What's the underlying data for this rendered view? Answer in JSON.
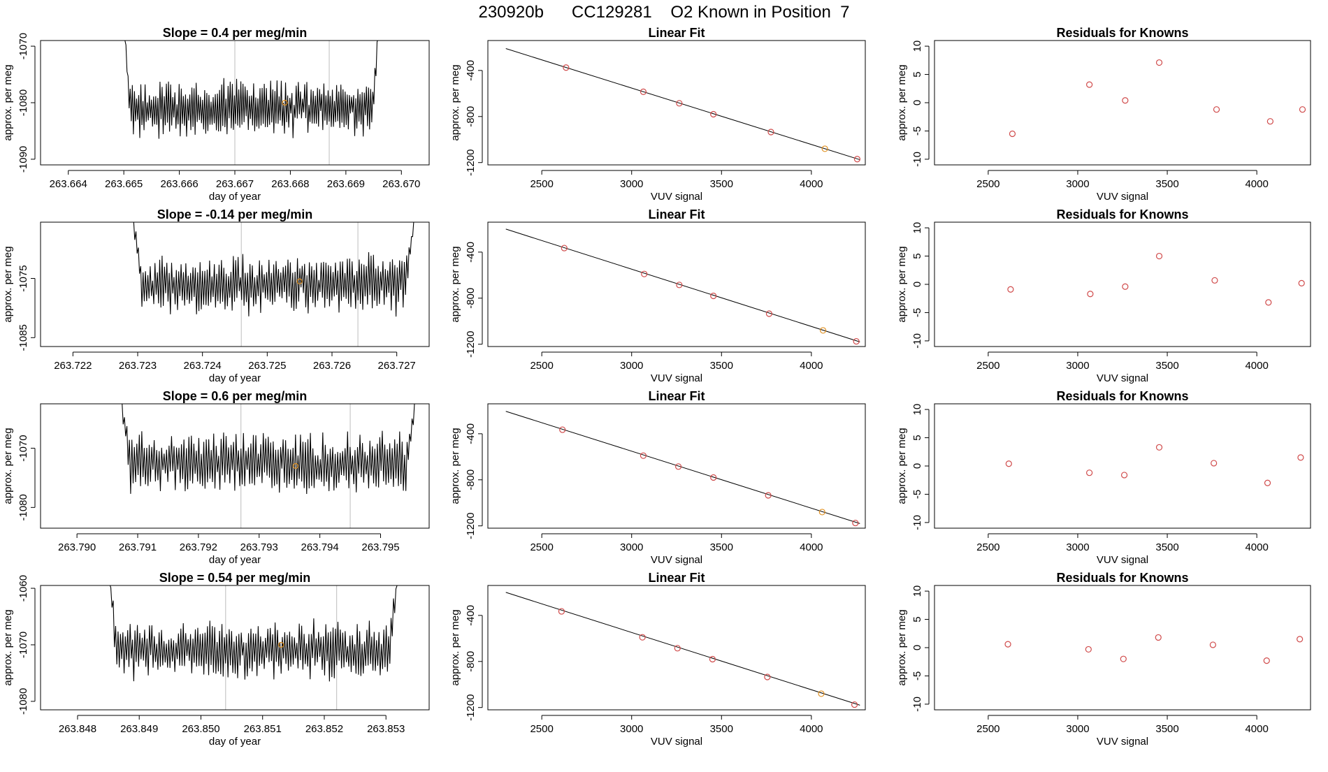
{
  "page": {
    "title": "230920b      CC129281    O2 Known in Position  7"
  },
  "colors": {
    "line": "#000000",
    "grid_vline": "#c8c8c8",
    "known_point": "#d04a4a",
    "highlight_point": "#e09020",
    "frame": "#000000"
  },
  "chart_data": [
    {
      "type": "line",
      "row": 1,
      "col": 1,
      "title": "Slope =  0.4  per meg/min",
      "xlabel": "day of year",
      "ylabel": "approx. per meg",
      "xlim": [
        263.6635,
        263.6705
      ],
      "ylim": [
        -1091,
        -1069
      ],
      "xticks": [
        263.664,
        263.665,
        263.666,
        263.667,
        263.668,
        263.669,
        263.67
      ],
      "xtick_labels": [
        "263.664",
        "263.665",
        "263.666",
        "263.667",
        "263.668",
        "263.669",
        "263.670"
      ],
      "yticks": [
        -1090,
        -1080,
        -1070
      ],
      "ytick_labels": [
        "-1090",
        "-1080",
        "-1070"
      ],
      "trace": {
        "x_start": 263.665,
        "x_end": 263.6696,
        "baseline": -1081,
        "amplitude": 4.5,
        "start_level": -1066,
        "end_level": -1066,
        "edge_fraction": 0.025
      },
      "vlines": [
        263.667,
        263.6687
      ],
      "marker": {
        "x": 263.6679,
        "y": -1080
      }
    },
    {
      "type": "scatter",
      "row": 1,
      "col": 2,
      "title": "Linear Fit",
      "xlabel": "VUV signal",
      "ylabel": "approx. per meg",
      "xlim": [
        2200,
        4300
      ],
      "ylim": [
        -1220,
        -140
      ],
      "xticks": [
        2500,
        3000,
        3500,
        4000
      ],
      "xtick_labels": [
        "2500",
        "3000",
        "3500",
        "4000"
      ],
      "yticks": [
        -1200,
        -800,
        -400
      ],
      "ytick_labels": [
        "-1200",
        "-800",
        "-400"
      ],
      "fit_line": {
        "x": [
          2300,
          4270
        ],
        "y": [
          -210,
          -1175
        ]
      },
      "points": [
        {
          "x": 2635,
          "y": -375
        },
        {
          "x": 3065,
          "y": -585
        },
        {
          "x": 3265,
          "y": -685
        },
        {
          "x": 3455,
          "y": -780
        },
        {
          "x": 3775,
          "y": -935
        },
        {
          "x": 4075,
          "y": -1080
        },
        {
          "x": 4255,
          "y": -1170
        }
      ],
      "highlight_index": 5
    },
    {
      "type": "scatter",
      "row": 1,
      "col": 3,
      "title": "Residuals for Knowns",
      "xlabel": "VUV signal",
      "ylabel": "approx. per meg",
      "xlim": [
        2200,
        4300
      ],
      "ylim": [
        -11,
        11
      ],
      "xticks": [
        2500,
        3000,
        3500,
        4000
      ],
      "xtick_labels": [
        "2500",
        "3000",
        "3500",
        "4000"
      ],
      "yticks": [
        -10,
        -5,
        0,
        5,
        10
      ],
      "ytick_labels": [
        "-10",
        "-5",
        "0",
        "5",
        "10"
      ],
      "points": [
        {
          "x": 2635,
          "y": -5.5
        },
        {
          "x": 3065,
          "y": 3.2
        },
        {
          "x": 3265,
          "y": 0.4
        },
        {
          "x": 3455,
          "y": 7.1
        },
        {
          "x": 3775,
          "y": -1.2
        },
        {
          "x": 4075,
          "y": -3.3
        },
        {
          "x": 4255,
          "y": -1.2
        }
      ]
    },
    {
      "type": "line",
      "row": 2,
      "col": 1,
      "title": "Slope =  -0.14  per meg/min",
      "xlabel": "day of year",
      "ylabel": "approx. per meg",
      "xlim": [
        263.7215,
        263.7275
      ],
      "ylim": [
        -1086.5,
        -1065.5
      ],
      "xticks": [
        263.722,
        263.723,
        263.724,
        263.725,
        263.726,
        263.727
      ],
      "xtick_labels": [
        "263.722",
        "263.723",
        "263.724",
        "263.725",
        "263.726",
        "263.727"
      ],
      "yticks": [
        -1085,
        -1075
      ],
      "ytick_labels": [
        "-1085",
        "-1075"
      ],
      "trace": {
        "x_start": 263.7229,
        "x_end": 263.7273,
        "baseline": -1076,
        "amplitude": 4.5,
        "start_level": -1063,
        "end_level": -1063,
        "edge_fraction": 0.04
      },
      "vlines": [
        263.7246,
        263.7264
      ],
      "marker": {
        "x": 263.7255,
        "y": -1075.5
      }
    },
    {
      "type": "scatter",
      "row": 2,
      "col": 2,
      "title": "Linear Fit",
      "xlabel": "VUV signal",
      "ylabel": "approx. per meg",
      "xlim": [
        2200,
        4300
      ],
      "ylim": [
        -1220,
        -140
      ],
      "xticks": [
        2500,
        3000,
        3500,
        4000
      ],
      "xtick_labels": [
        "2500",
        "3000",
        "3500",
        "4000"
      ],
      "yticks": [
        -1200,
        -800,
        -400
      ],
      "ytick_labels": [
        "-1200",
        "-800",
        "-400"
      ],
      "fit_line": {
        "x": [
          2300,
          4270
        ],
        "y": [
          -200,
          -1180
        ]
      },
      "points": [
        {
          "x": 2625,
          "y": -365
        },
        {
          "x": 3070,
          "y": -590
        },
        {
          "x": 3265,
          "y": -685
        },
        {
          "x": 3455,
          "y": -780
        },
        {
          "x": 3765,
          "y": -935
        },
        {
          "x": 4065,
          "y": -1080
        },
        {
          "x": 4250,
          "y": -1175
        }
      ],
      "highlight_index": 5
    },
    {
      "type": "scatter",
      "row": 2,
      "col": 3,
      "title": "Residuals for Knowns",
      "xlabel": "VUV signal",
      "ylabel": "approx. per meg",
      "xlim": [
        2200,
        4300
      ],
      "ylim": [
        -11,
        11
      ],
      "xticks": [
        2500,
        3000,
        3500,
        4000
      ],
      "xtick_labels": [
        "2500",
        "3000",
        "3500",
        "4000"
      ],
      "yticks": [
        -10,
        -5,
        0,
        5,
        10
      ],
      "ytick_labels": [
        "-10",
        "-5",
        "0",
        "5",
        "10"
      ],
      "points": [
        {
          "x": 2625,
          "y": -0.9
        },
        {
          "x": 3070,
          "y": -1.7
        },
        {
          "x": 3265,
          "y": -0.4
        },
        {
          "x": 3455,
          "y": 5.0
        },
        {
          "x": 3765,
          "y": 0.7
        },
        {
          "x": 4065,
          "y": -3.2
        },
        {
          "x": 4250,
          "y": 0.2
        }
      ]
    },
    {
      "type": "line",
      "row": 3,
      "col": 1,
      "title": "Slope =  0.6  per meg/min",
      "xlabel": "day of year",
      "ylabel": "approx. per meg",
      "xlim": [
        263.7894,
        263.7958
      ],
      "ylim": [
        -1083.5,
        -1062.5
      ],
      "xticks": [
        263.79,
        263.791,
        263.792,
        263.793,
        263.794,
        263.795
      ],
      "xtick_labels": [
        "263.790",
        "263.791",
        "263.792",
        "263.793",
        "263.794",
        "263.795"
      ],
      "yticks": [
        -1080,
        -1070
      ],
      "ytick_labels": [
        "-1080",
        "-1070"
      ],
      "trace": {
        "x_start": 263.7907,
        "x_end": 263.7956,
        "baseline": -1072.5,
        "amplitude": 4.5,
        "start_level": -1060,
        "end_level": -1060,
        "edge_fraction": 0.035
      },
      "vlines": [
        263.7927,
        263.7945
      ],
      "marker": {
        "x": 263.7936,
        "y": -1073
      }
    },
    {
      "type": "scatter",
      "row": 3,
      "col": 2,
      "title": "Linear Fit",
      "xlabel": "VUV signal",
      "ylabel": "approx. per meg",
      "xlim": [
        2200,
        4300
      ],
      "ylim": [
        -1220,
        -140
      ],
      "xticks": [
        2500,
        3000,
        3500,
        4000
      ],
      "xtick_labels": [
        "2500",
        "3000",
        "3500",
        "4000"
      ],
      "yticks": [
        -1200,
        -800,
        -400
      ],
      "ytick_labels": [
        "-1200",
        "-800",
        "-400"
      ],
      "fit_line": {
        "x": [
          2300,
          4270
        ],
        "y": [
          -205,
          -1180
        ]
      },
      "points": [
        {
          "x": 2615,
          "y": -365
        },
        {
          "x": 3065,
          "y": -590
        },
        {
          "x": 3260,
          "y": -685
        },
        {
          "x": 3455,
          "y": -780
        },
        {
          "x": 3760,
          "y": -935
        },
        {
          "x": 4060,
          "y": -1080
        },
        {
          "x": 4245,
          "y": -1175
        }
      ],
      "highlight_index": 5
    },
    {
      "type": "scatter",
      "row": 3,
      "col": 3,
      "title": "Residuals for Knowns",
      "xlabel": "VUV signal",
      "ylabel": "approx. per meg",
      "xlim": [
        2200,
        4300
      ],
      "ylim": [
        -11,
        11
      ],
      "xticks": [
        2500,
        3000,
        3500,
        4000
      ],
      "xtick_labels": [
        "2500",
        "3000",
        "3500",
        "4000"
      ],
      "yticks": [
        -10,
        -5,
        0,
        5,
        10
      ],
      "ytick_labels": [
        "-10",
        "-5",
        "0",
        "5",
        "10"
      ],
      "points": [
        {
          "x": 2615,
          "y": 0.4
        },
        {
          "x": 3065,
          "y": -1.2
        },
        {
          "x": 3260,
          "y": -1.6
        },
        {
          "x": 3455,
          "y": 3.3
        },
        {
          "x": 3760,
          "y": 0.5
        },
        {
          "x": 4060,
          "y": -3.0
        },
        {
          "x": 4245,
          "y": 1.5
        }
      ]
    },
    {
      "type": "line",
      "row": 4,
      "col": 1,
      "title": "Slope =  0.54  per meg/min",
      "xlabel": "day of year",
      "ylabel": "approx. per meg",
      "xlim": [
        263.8474,
        263.8537
      ],
      "ylim": [
        -1081.5,
        -1059.5
      ],
      "xticks": [
        263.848,
        263.849,
        263.85,
        263.851,
        263.852,
        263.853
      ],
      "xtick_labels": [
        "263.848",
        "263.849",
        "263.850",
        "263.851",
        "263.852",
        "263.853"
      ],
      "yticks": [
        -1080,
        -1070,
        -1060
      ],
      "ytick_labels": [
        "-1080",
        "-1070",
        "-1060"
      ],
      "trace": {
        "x_start": 263.8485,
        "x_end": 263.8532,
        "baseline": -1071,
        "amplitude": 4.5,
        "start_level": -1057,
        "end_level": -1057,
        "edge_fraction": 0.03
      },
      "vlines": [
        263.8504,
        263.8522
      ],
      "marker": {
        "x": 263.8513,
        "y": -1070
      }
    },
    {
      "type": "scatter",
      "row": 4,
      "col": 2,
      "title": "Linear Fit",
      "xlabel": "VUV signal",
      "ylabel": "approx. per meg",
      "xlim": [
        2200,
        4300
      ],
      "ylim": [
        -1220,
        -140
      ],
      "xticks": [
        2500,
        3000,
        3500,
        4000
      ],
      "xtick_labels": [
        "2500",
        "3000",
        "3500",
        "4000"
      ],
      "yticks": [
        -1200,
        -800,
        -400
      ],
      "ytick_labels": [
        "-1200",
        "-800",
        "-400"
      ],
      "fit_line": {
        "x": [
          2300,
          4270
        ],
        "y": [
          -200,
          -1180
        ]
      },
      "points": [
        {
          "x": 2610,
          "y": -365
        },
        {
          "x": 3060,
          "y": -590
        },
        {
          "x": 3255,
          "y": -685
        },
        {
          "x": 3450,
          "y": -780
        },
        {
          "x": 3755,
          "y": -935
        },
        {
          "x": 4055,
          "y": -1080
        },
        {
          "x": 4240,
          "y": -1175
        }
      ],
      "highlight_index": 5
    },
    {
      "type": "scatter",
      "row": 4,
      "col": 3,
      "title": "Residuals for Knowns",
      "xlabel": "VUV signal",
      "ylabel": "approx. per meg",
      "xlim": [
        2200,
        4300
      ],
      "ylim": [
        -11,
        11
      ],
      "xticks": [
        2500,
        3000,
        3500,
        4000
      ],
      "xtick_labels": [
        "2500",
        "3000",
        "3500",
        "4000"
      ],
      "yticks": [
        -10,
        -5,
        0,
        5,
        10
      ],
      "ytick_labels": [
        "-10",
        "-5",
        "0",
        "5",
        "10"
      ],
      "points": [
        {
          "x": 2610,
          "y": 0.6
        },
        {
          "x": 3060,
          "y": -0.3
        },
        {
          "x": 3255,
          "y": -2.0
        },
        {
          "x": 3450,
          "y": 1.8
        },
        {
          "x": 3755,
          "y": 0.5
        },
        {
          "x": 4055,
          "y": -2.3
        },
        {
          "x": 4240,
          "y": 1.5
        }
      ]
    }
  ]
}
